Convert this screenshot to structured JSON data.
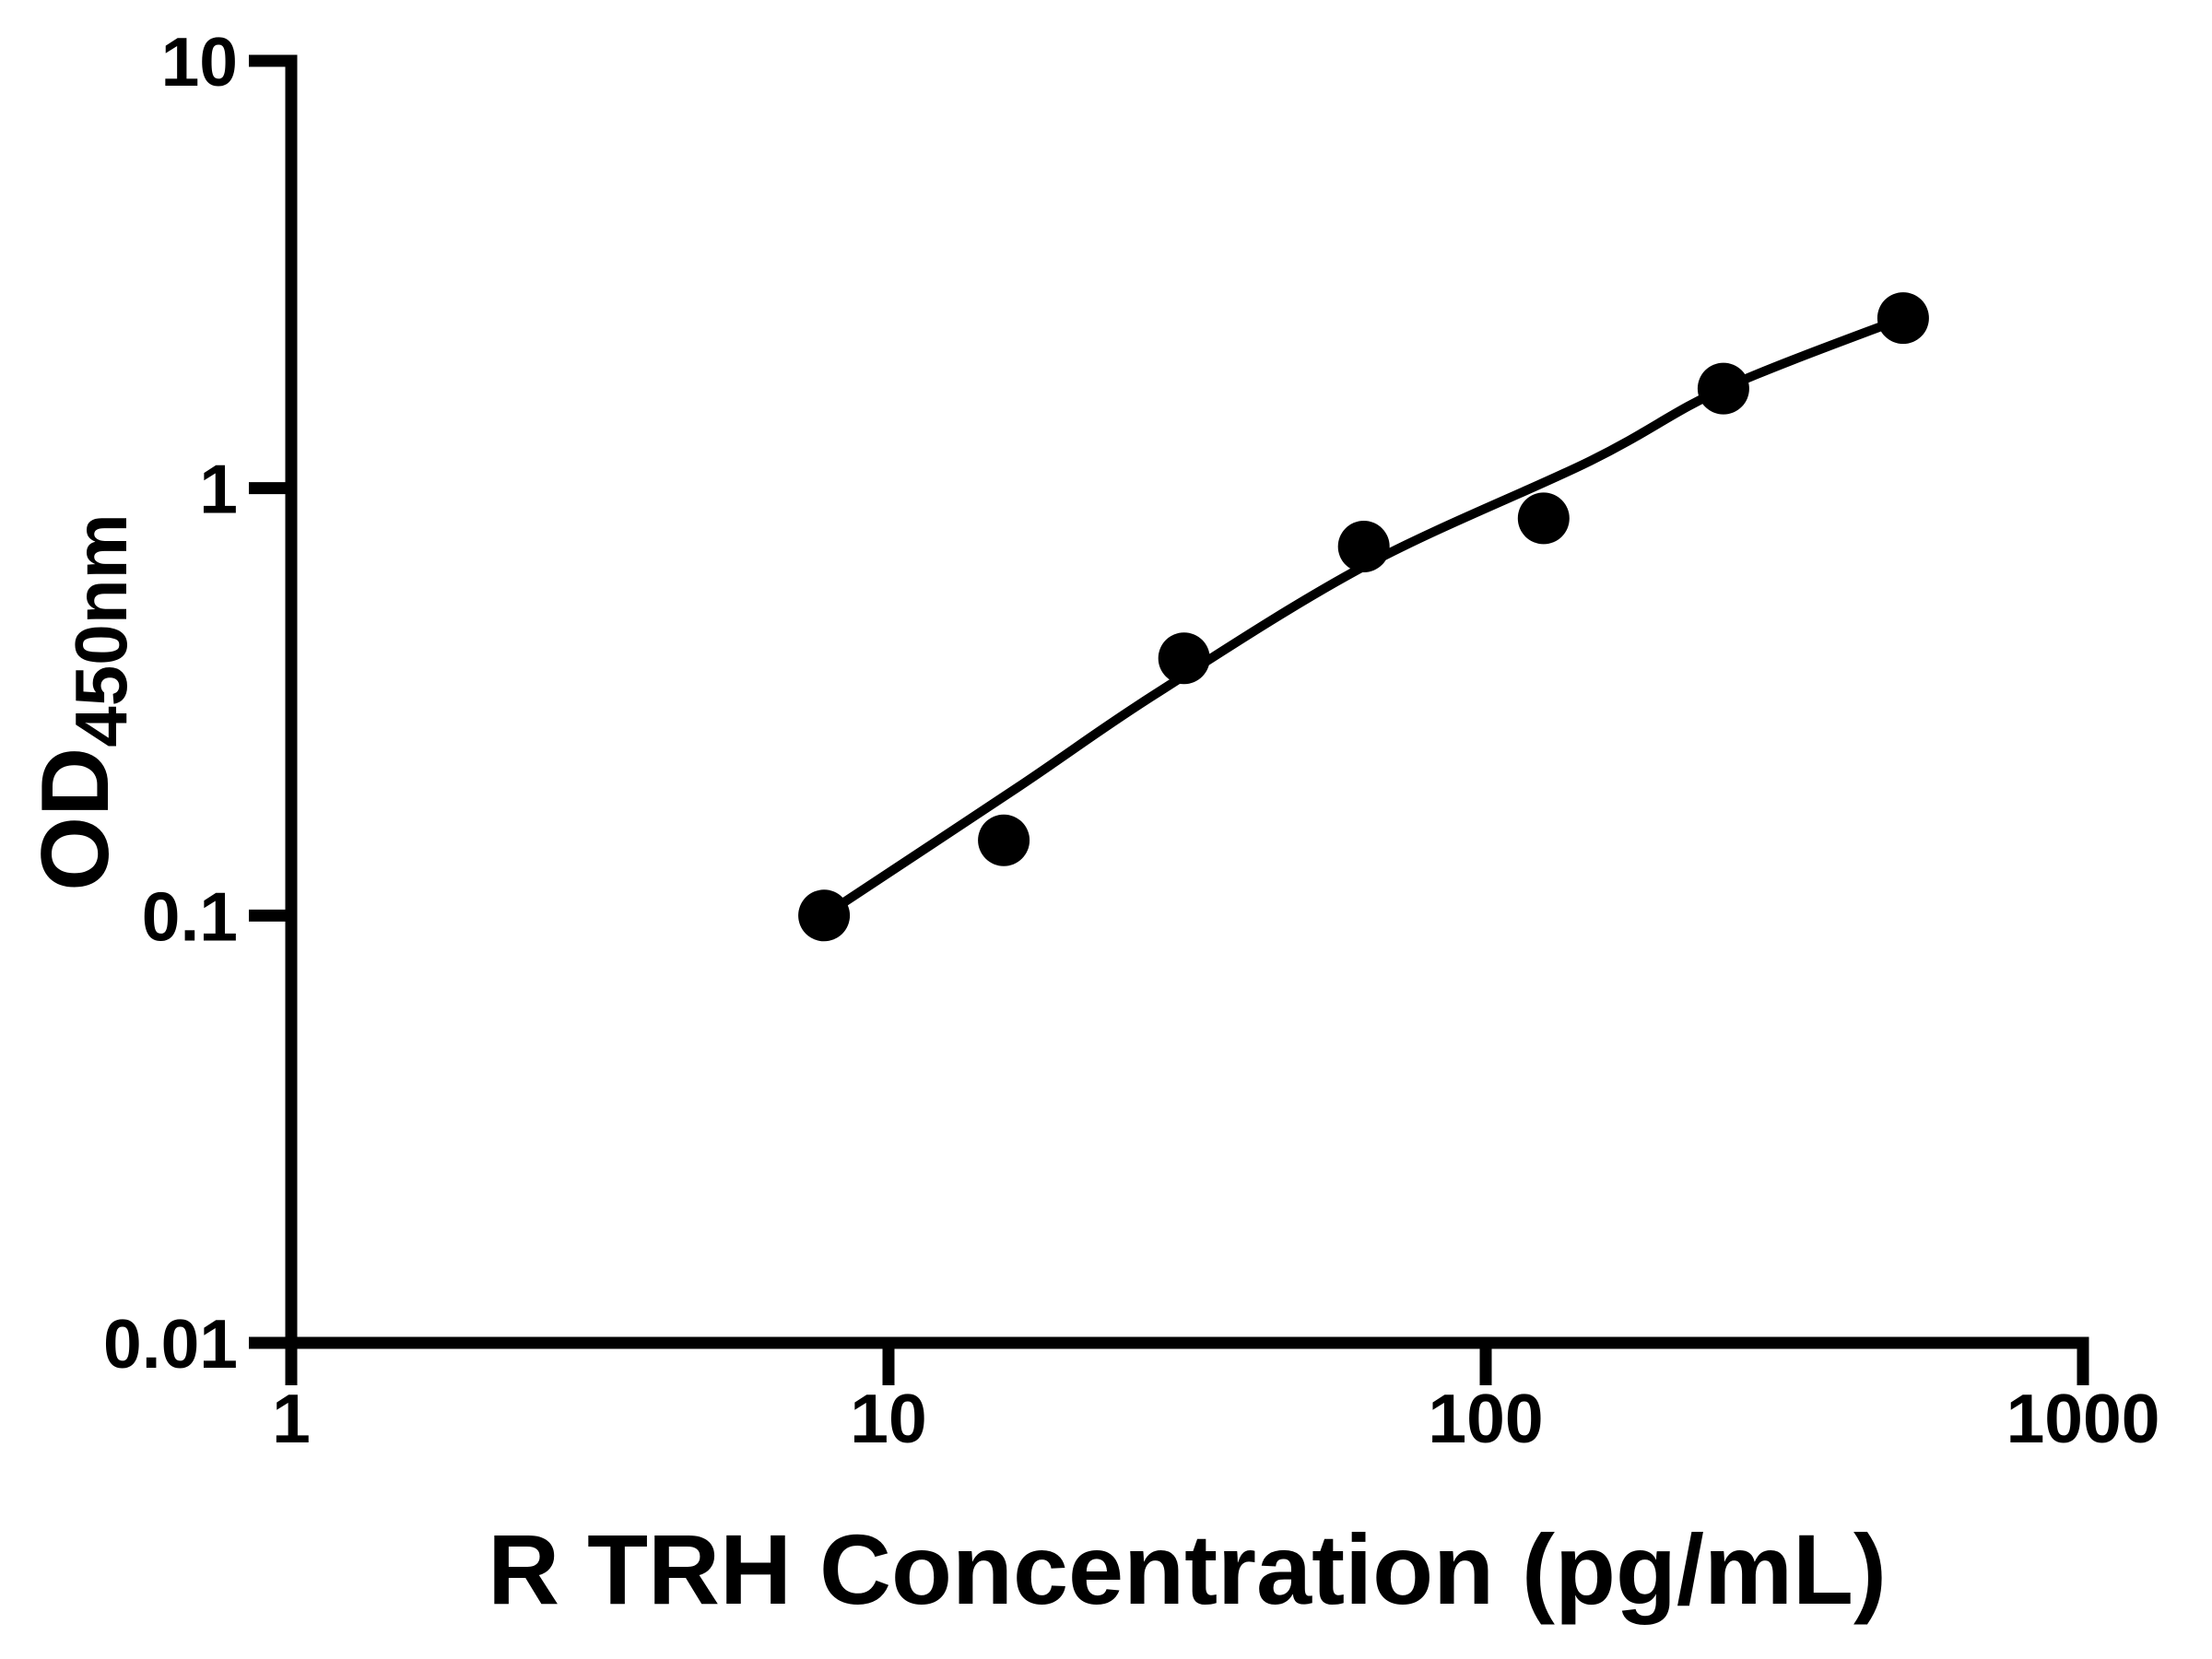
{
  "figure": {
    "background_color": "#ffffff",
    "foreground_color": "#000000"
  },
  "chart_data": {
    "type": "scatter",
    "subtype": "elisa-standard-curve",
    "title": "",
    "xlabel": "R TRH Concentration (pg/mL)",
    "ylabel_main": "OD",
    "ylabel_subscript": "450nm",
    "x_scale": "log10",
    "y_scale": "log10",
    "xlim": [
      1,
      1000
    ],
    "ylim": [
      0.01,
      10
    ],
    "x_ticks": [
      {
        "value": 1,
        "label": "1"
      },
      {
        "value": 10,
        "label": "10"
      },
      {
        "value": 100,
        "label": "100"
      },
      {
        "value": 1000,
        "label": "1000"
      }
    ],
    "y_ticks": [
      {
        "value": 0.01,
        "label": "0.01"
      },
      {
        "value": 0.1,
        "label": "0.1"
      },
      {
        "value": 1,
        "label": "1"
      },
      {
        "value": 10,
        "label": "10"
      }
    ],
    "grid": false,
    "legend": "none",
    "series": [
      {
        "name": "standard-points",
        "type": "scatter",
        "marker": "filled-circle",
        "color": "#000000",
        "x": [
          7.8,
          15.6,
          31.25,
          62.5,
          125,
          250,
          500
        ],
        "y": [
          0.1,
          0.15,
          0.4,
          0.73,
          0.85,
          1.71,
          2.5
        ]
      },
      {
        "name": "fitted-curve",
        "type": "line",
        "color": "#000000",
        "x": [
          7.8,
          16.5,
          28,
          63,
          150,
          250,
          500
        ],
        "y": [
          0.1,
          0.2,
          0.33,
          0.66,
          1.16,
          1.71,
          2.5
        ]
      }
    ]
  }
}
